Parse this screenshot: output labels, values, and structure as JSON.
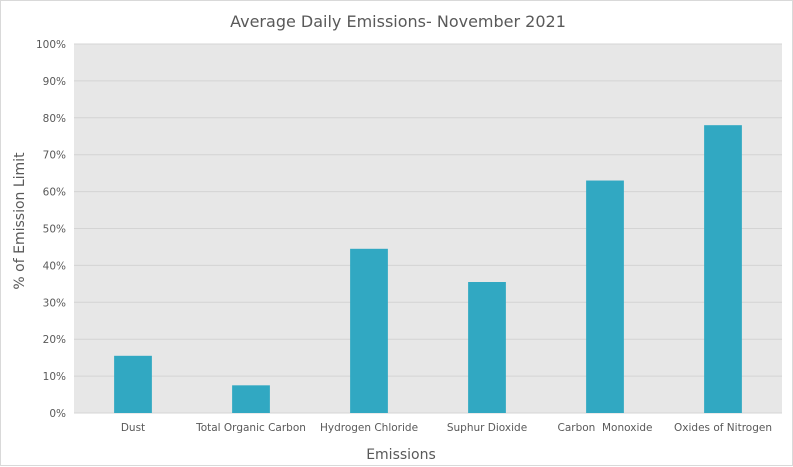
{
  "chart_data": {
    "type": "bar",
    "title": "Average Daily Emissions- November 2021",
    "xlabel": "Emissions",
    "ylabel": "% of Emission Limit",
    "categories": [
      "Dust",
      "Total Organic Carbon",
      "Hydrogen Chloride",
      "Suphur Dioxide",
      "Carbon  Monoxide",
      "Oxides of Nitrogen"
    ],
    "values": [
      15.5,
      7.5,
      44.5,
      35.5,
      63,
      78
    ],
    "ylim": [
      0,
      100
    ],
    "yticks": [
      "0%",
      "10%",
      "20%",
      "30%",
      "40%",
      "50%",
      "60%",
      "70%",
      "80%",
      "90%",
      "100%"
    ],
    "grid": true,
    "legend": "none",
    "colors": {
      "bar": "#31a8c2",
      "plot_bg": "#e7e7e7",
      "grid": "#d4d4d4"
    }
  }
}
